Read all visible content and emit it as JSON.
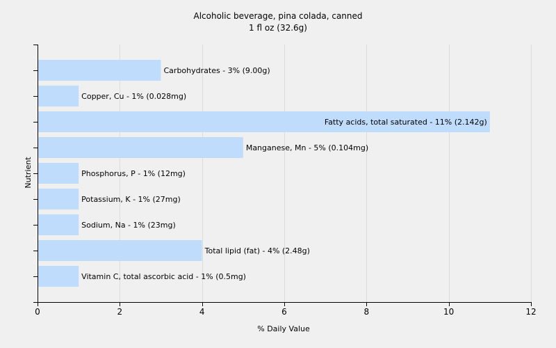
{
  "chart_data": {
    "type": "bar",
    "orientation": "horizontal",
    "title": "Alcoholic beverage, pina colada, canned",
    "subtitle": "1 fl oz (32.6g)",
    "xlabel": "% Daily Value",
    "ylabel": "Nutrient",
    "xlim": [
      0,
      12
    ],
    "xticks": [
      0,
      2,
      4,
      6,
      8,
      10,
      12
    ],
    "grid": true,
    "categories": [
      "Carbohydrates",
      "Copper, Cu",
      "Fatty acids, total saturated",
      "Manganese, Mn",
      "Phosphorus, P",
      "Potassium, K",
      "Sodium, Na",
      "Total lipid (fat)",
      "Vitamin C, total ascorbic acid"
    ],
    "values": [
      3,
      1,
      11,
      5,
      1,
      1,
      1,
      4,
      1
    ],
    "labels": [
      "Carbohydrates - 3% (9.00g)",
      "Copper, Cu - 1% (0.028mg)",
      "Fatty acids, total saturated - 11% (2.142g)",
      "Manganese, Mn - 5% (0.104mg)",
      "Phosphorus, P - 1% (12mg)",
      "Potassium, K - 1% (27mg)",
      "Sodium, Na - 1% (23mg)",
      "Total lipid (fat) - 4% (2.48g)",
      "Vitamin C, total ascorbic acid - 1% (0.5mg)"
    ],
    "colors": {
      "bar": "#c0dcfc",
      "grid": "#dcdcdc",
      "axis": "#000000",
      "background": "#f0f0f0"
    }
  }
}
